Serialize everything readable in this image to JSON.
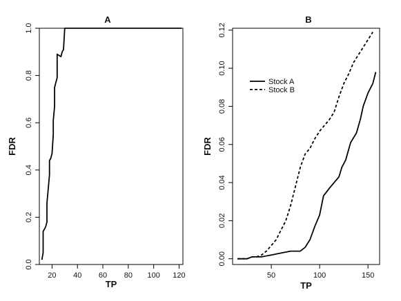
{
  "chart_data": [
    {
      "type": "line",
      "title": "A",
      "xlabel": "TP",
      "ylabel": "FDR",
      "xlim": [
        10,
        123
      ],
      "ylim": [
        0,
        1.0
      ],
      "xticks": [
        20,
        40,
        60,
        80,
        100,
        120
      ],
      "yticks": [
        0.0,
        0.2,
        0.4,
        0.6,
        0.8,
        1.0
      ],
      "yticklabels": [
        "0.0",
        "0.2",
        "0.4",
        "0.6",
        "0.8",
        "1.0"
      ],
      "grid": false,
      "series": [
        {
          "style": "solid",
          "points": [
            [
              12,
              0.02
            ],
            [
              13,
              0.05
            ],
            [
              13,
              0.14
            ],
            [
              14,
              0.15
            ],
            [
              15,
              0.16
            ],
            [
              16,
              0.18
            ],
            [
              16,
              0.26
            ],
            [
              17,
              0.32
            ],
            [
              18,
              0.38
            ],
            [
              18,
              0.44
            ],
            [
              19,
              0.45
            ],
            [
              20,
              0.47
            ],
            [
              21,
              0.55
            ],
            [
              21,
              0.61
            ],
            [
              22,
              0.67
            ],
            [
              22,
              0.75
            ],
            [
              23,
              0.77
            ],
            [
              24,
              0.79
            ],
            [
              24,
              0.89
            ],
            [
              27,
              0.88
            ],
            [
              28,
              0.9
            ],
            [
              29,
              0.91
            ],
            [
              30,
              1.0
            ],
            [
              122,
              1.0
            ]
          ]
        }
      ]
    },
    {
      "type": "line",
      "title": "B",
      "xlabel": "TP",
      "ylabel": "FDR",
      "xlim": [
        10,
        162
      ],
      "ylim": [
        -0.003,
        0.121
      ],
      "xticks": [
        50,
        100,
        150
      ],
      "yticks": [
        0.0,
        0.02,
        0.04,
        0.06,
        0.08,
        0.1,
        0.12
      ],
      "yticklabels": [
        "0.00",
        "0.02",
        "0.04",
        "0.06",
        "0.08",
        "0.10",
        "0.12"
      ],
      "grid": false,
      "legend_position": "top-left",
      "series": [
        {
          "name": "Stock A",
          "style": "solid",
          "points": [
            [
              15,
              0.0
            ],
            [
              20,
              0.0
            ],
            [
              25,
              0.0
            ],
            [
              30,
              0.001
            ],
            [
              40,
              0.001
            ],
            [
              50,
              0.002
            ],
            [
              60,
              0.003
            ],
            [
              70,
              0.004
            ],
            [
              80,
              0.004
            ],
            [
              85,
              0.006
            ],
            [
              90,
              0.01
            ],
            [
              95,
              0.017
            ],
            [
              100,
              0.023
            ],
            [
              104,
              0.033
            ],
            [
              110,
              0.037
            ],
            [
              115,
              0.04
            ],
            [
              120,
              0.043
            ],
            [
              123,
              0.048
            ],
            [
              127,
              0.052
            ],
            [
              132,
              0.061
            ],
            [
              138,
              0.066
            ],
            [
              142,
              0.073
            ],
            [
              145,
              0.08
            ],
            [
              150,
              0.087
            ],
            [
              155,
              0.092
            ],
            [
              158,
              0.098
            ]
          ]
        },
        {
          "name": "Stock B",
          "style": "dashed",
          "points": [
            [
              15,
              0.0
            ],
            [
              20,
              0.0
            ],
            [
              25,
              0.0
            ],
            [
              30,
              0.001
            ],
            [
              35,
              0.001
            ],
            [
              40,
              0.002
            ],
            [
              45,
              0.004
            ],
            [
              50,
              0.007
            ],
            [
              55,
              0.01
            ],
            [
              60,
              0.015
            ],
            [
              65,
              0.02
            ],
            [
              70,
              0.028
            ],
            [
              75,
              0.038
            ],
            [
              80,
              0.048
            ],
            [
              85,
              0.055
            ],
            [
              90,
              0.058
            ],
            [
              95,
              0.063
            ],
            [
              100,
              0.067
            ],
            [
              105,
              0.07
            ],
            [
              110,
              0.073
            ],
            [
              115,
              0.077
            ],
            [
              120,
              0.085
            ],
            [
              125,
              0.092
            ],
            [
              130,
              0.097
            ],
            [
              135,
              0.103
            ],
            [
              140,
              0.107
            ],
            [
              145,
              0.111
            ],
            [
              150,
              0.115
            ],
            [
              155,
              0.119
            ]
          ]
        }
      ]
    }
  ]
}
